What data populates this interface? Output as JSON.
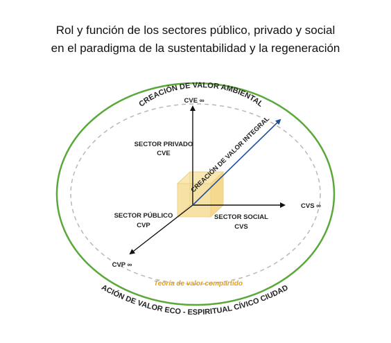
{
  "title": {
    "line1": "Rol y función de los sectores público, privado y social",
    "line2": "en el paradigma de la sustentabilidad y la regeneración"
  },
  "diagram": {
    "outer_top_label": "CREACIÓN DE VALOR AMBIENTAL",
    "outer_bottom_label": "CREACIÓN DE VALOR ECO - ESPIRITUAL CÍVICO CIUDADANO",
    "inner_label": "Teoría de valor compartido",
    "axis_up_label": "CVE ∞",
    "axis_right_label": "CVS ∞",
    "axis_left_label": "CVP ∞",
    "diagonal_label": "CREACIÓN DE VALOR INTEGRAL",
    "private_sector": {
      "name": "SECTOR PRIVADO",
      "abbr": "CVE"
    },
    "public_sector": {
      "name": "SECTOR PÚBLICO",
      "abbr": "CVP"
    },
    "social_sector": {
      "name": "SECTOR SOCIAL",
      "abbr": "CVS"
    },
    "colors": {
      "outer_ellipse": "#5aa83a",
      "inner_ellipse": "#b5b5b5",
      "cube": "#f7df9c",
      "cube_edge": "#e8c868",
      "diagonal_arrow": "#1f4e9a",
      "shared_value_text": "#e0a020"
    }
  }
}
